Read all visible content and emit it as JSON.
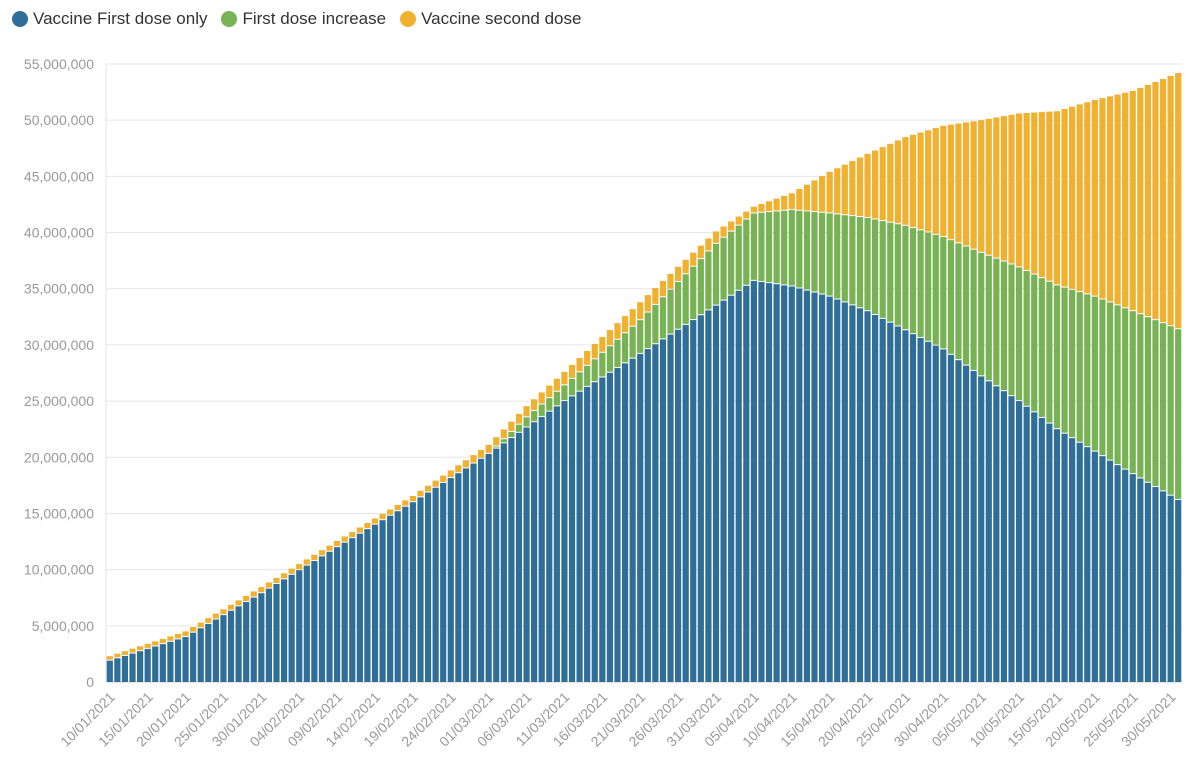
{
  "chart_data": {
    "type": "bar",
    "stacked": true,
    "title": "",
    "xlabel": "",
    "ylabel": "",
    "ylim": [
      0,
      55000000
    ],
    "yticks": [
      0,
      5000000,
      10000000,
      15000000,
      20000000,
      25000000,
      30000000,
      35000000,
      40000000,
      45000000,
      50000000,
      55000000
    ],
    "ytick_labels": [
      "0",
      "5,000,000",
      "10,000,000",
      "15,000,000",
      "20,000,000",
      "25,000,000",
      "30,000,000",
      "35,000,000",
      "40,000,000",
      "45,000,000",
      "50,000,000",
      "55,000,000"
    ],
    "grid": true,
    "legend": "top-left",
    "date_start": "10/01/2021",
    "date_end": "31/05/2021",
    "xtick_labels": [
      "10/01/2021",
      "15/01/2021",
      "20/01/2021",
      "25/01/2021",
      "30/01/2021",
      "04/02/2021",
      "09/02/2021",
      "14/02/2021",
      "19/02/2021",
      "24/02/2021",
      "01/03/2021",
      "06/03/2021",
      "11/03/2021",
      "16/03/2021",
      "21/03/2021",
      "26/03/2021",
      "31/03/2021",
      "05/04/2021",
      "10/04/2021",
      "15/04/2021",
      "20/04/2021",
      "25/04/2021",
      "30/04/2021",
      "05/05/2021",
      "10/05/2021",
      "15/05/2021",
      "20/05/2021",
      "25/05/2021",
      "30/05/2021"
    ],
    "series": [
      {
        "name": "Vaccine First dose only",
        "color": "#2e6e99",
        "anchors": [
          [
            "10/01/2021",
            1900000
          ],
          [
            "20/01/2021",
            4000000
          ],
          [
            "30/01/2021",
            7900000
          ],
          [
            "09/02/2021",
            12000000
          ],
          [
            "19/02/2021",
            16000000
          ],
          [
            "01/03/2021",
            20300000
          ],
          [
            "11/03/2021",
            25000000
          ],
          [
            "21/03/2021",
            29200000
          ],
          [
            "31/03/2021",
            33500000
          ],
          [
            "05/04/2021",
            35700000
          ],
          [
            "10/04/2021",
            35200000
          ],
          [
            "15/04/2021",
            34300000
          ],
          [
            "20/04/2021",
            33000000
          ],
          [
            "25/04/2021",
            31300000
          ],
          [
            "30/04/2021",
            29600000
          ],
          [
            "05/05/2021",
            27200000
          ],
          [
            "10/05/2021",
            25000000
          ],
          [
            "15/05/2021",
            22500000
          ],
          [
            "20/05/2021",
            20500000
          ],
          [
            "25/05/2021",
            18500000
          ],
          [
            "31/05/2021",
            16200000
          ]
        ]
      },
      {
        "name": "First dose increase",
        "color": "#77b254",
        "anchors": [
          [
            "10/01/2021",
            0
          ],
          [
            "01/03/2021",
            0
          ],
          [
            "06/03/2021",
            900000
          ],
          [
            "11/03/2021",
            1400000
          ],
          [
            "21/03/2021",
            3000000
          ],
          [
            "31/03/2021",
            5500000
          ],
          [
            "05/04/2021",
            6000000
          ],
          [
            "10/04/2021",
            6800000
          ],
          [
            "15/04/2021",
            7400000
          ],
          [
            "20/04/2021",
            8300000
          ],
          [
            "25/04/2021",
            9300000
          ],
          [
            "30/04/2021",
            10000000
          ],
          [
            "05/05/2021",
            11000000
          ],
          [
            "10/05/2021",
            11900000
          ],
          [
            "15/05/2021",
            12800000
          ],
          [
            "20/05/2021",
            13800000
          ],
          [
            "25/05/2021",
            14500000
          ],
          [
            "31/05/2021",
            15200000
          ]
        ]
      },
      {
        "name": "Vaccine second dose",
        "color": "#f0b030",
        "anchors": [
          [
            "10/01/2021",
            400000
          ],
          [
            "20/01/2021",
            500000
          ],
          [
            "30/01/2021",
            550000
          ],
          [
            "09/02/2021",
            550000
          ],
          [
            "19/02/2021",
            560000
          ],
          [
            "01/03/2021",
            800000
          ],
          [
            "11/03/2021",
            1200000
          ],
          [
            "21/03/2021",
            1600000
          ],
          [
            "31/03/2021",
            1100000
          ],
          [
            "05/04/2021",
            600000
          ],
          [
            "10/04/2021",
            1500000
          ],
          [
            "15/04/2021",
            3700000
          ],
          [
            "20/04/2021",
            5700000
          ],
          [
            "25/04/2021",
            7900000
          ],
          [
            "30/04/2021",
            9900000
          ],
          [
            "05/05/2021",
            11800000
          ],
          [
            "10/05/2021",
            13700000
          ],
          [
            "15/05/2021",
            15500000
          ],
          [
            "20/05/2021",
            17500000
          ],
          [
            "25/05/2021",
            19600000
          ],
          [
            "31/05/2021",
            22800000
          ]
        ]
      }
    ]
  }
}
